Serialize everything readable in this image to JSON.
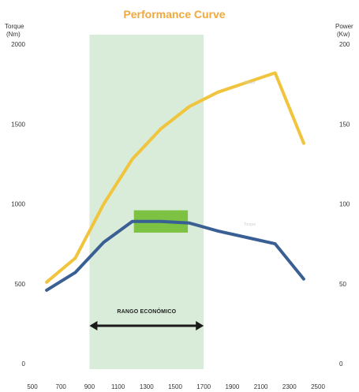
{
  "chart_data": {
    "type": "line",
    "title": "Performance Curve",
    "title_color": "#f2a83a",
    "left_axis": {
      "title_line1": "Torque",
      "title_line2": "(Nm)",
      "ticks": [
        "0",
        "500",
        "1000",
        "1500",
        "2000"
      ],
      "ylim": [
        0,
        2000
      ]
    },
    "right_axis": {
      "title_line1": "Power",
      "title_line2": "(Kw)",
      "ticks": [
        "0",
        "50",
        "100",
        "150",
        "200"
      ],
      "ylim": [
        0,
        200
      ]
    },
    "x_ticks": [
      "500",
      "700",
      "900",
      "1100",
      "1300",
      "1500",
      "1700",
      "1900",
      "2100",
      "2300",
      "2500"
    ],
    "xlim": [
      500,
      2500
    ],
    "series": [
      {
        "name": "Power",
        "axis": "right",
        "color": "#f0c43c",
        "x": [
          600,
          800,
          1000,
          1200,
          1400,
          1600,
          1800,
          2000,
          2200,
          2400
        ],
        "y": [
          51,
          66,
          100,
          128,
          147,
          161,
          170,
          176,
          182,
          138
        ]
      },
      {
        "name": "Torque",
        "axis": "left",
        "color": "#3a5f94",
        "x": [
          600,
          800,
          1000,
          1200,
          1400,
          1600,
          1800,
          2000,
          2200,
          2400
        ],
        "y": [
          460,
          570,
          760,
          890,
          890,
          880,
          830,
          790,
          750,
          530
        ]
      }
    ],
    "economic_range": {
      "label": "RANGO ECONÓMICO",
      "x_start": 900,
      "x_end": 1700,
      "color": "#d9ecd9"
    },
    "optimal_band": {
      "x_start": 1200,
      "x_end": 1600,
      "y_low": 820,
      "y_high": 960,
      "color": "#7dc242"
    },
    "grid": false
  }
}
